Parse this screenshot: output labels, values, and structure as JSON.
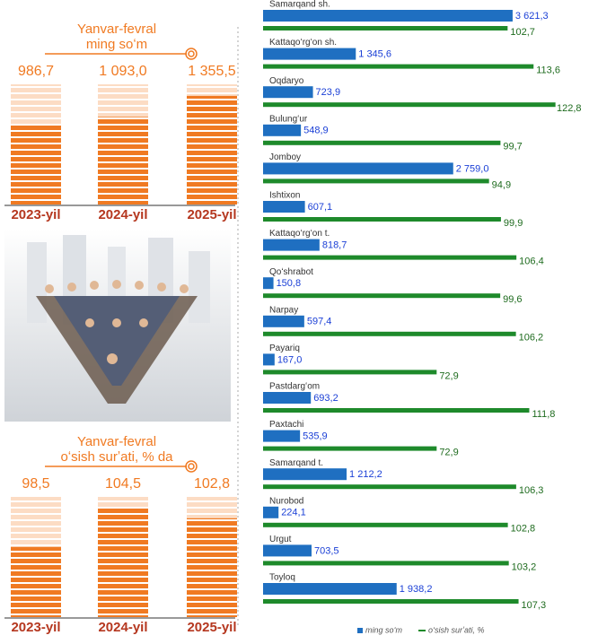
{
  "chart_data": [
    {
      "type": "bar",
      "title": "Yanvar-fevral",
      "subtitle": "ming soʻm",
      "categories": [
        "2023-yil",
        "2024-yil",
        "2025-yil"
      ],
      "values": [
        986.7,
        1093.0,
        1355.5
      ],
      "value_labels": [
        "986,7",
        "1 093,0",
        "1 355,5"
      ],
      "color": "#f07a22",
      "ylim": [
        0,
        1500
      ]
    },
    {
      "type": "bar",
      "title": "Yanvar-fevral",
      "subtitle": "oʻsish surʼati, % da",
      "categories": [
        "2023-yil",
        "2024-yil",
        "2025-yil"
      ],
      "values": [
        98.5,
        104.5,
        102.8
      ],
      "value_labels": [
        "98,5",
        "104,5",
        "102,8"
      ],
      "color": "#f07a22",
      "ylim": [
        88,
        106
      ]
    },
    {
      "type": "hbar",
      "categories": [
        "Samarqand sh.",
        "Kattaqoʻrgʻon sh.",
        "Oqdaryo",
        "Bulungʻur",
        "Jomboy",
        "Ishtixon",
        "Kattaqoʻrgʻon t.",
        "Qoʻshrabot",
        "Narpay",
        "Payariq",
        "Pastdargʻom",
        "Paxtachi",
        "Samarqand t.",
        "Nurobod",
        "Urgut",
        "Toyloq"
      ],
      "xlim": [
        0,
        4000
      ],
      "x2lim": [
        0,
        135
      ],
      "legend": "bottom",
      "series": [
        {
          "name": "ming soʻm",
          "color": "#1f6fc1",
          "values": [
            3621.3,
            1345.6,
            723.9,
            548.9,
            2759.0,
            607.1,
            818.7,
            150.8,
            597.4,
            167.0,
            693.2,
            535.9,
            1212.2,
            224.1,
            703.5,
            1938.2
          ],
          "value_labels": [
            "3 621,3",
            "1 345,6",
            "723,9",
            "548,9",
            "2 759,0",
            "607,1",
            "818,7",
            "150,8",
            "597,4",
            "167,0",
            "693,2",
            "535,9",
            "1 212,2",
            "224,1",
            "703,5",
            "1 938,2"
          ]
        },
        {
          "name": "oʻsish surʼati, %",
          "color": "#1e8a2b",
          "axis": "x2",
          "values": [
            102.7,
            113.6,
            122.8,
            99.7,
            94.9,
            99.9,
            106.4,
            99.6,
            106.2,
            72.9,
            111.8,
            72.9,
            106.3,
            102.8,
            103.2,
            107.3
          ],
          "value_labels": [
            "102,7",
            "113,6",
            "122,8",
            "99,7",
            "94,9",
            "99,9",
            "106,4",
            "99,6",
            "106,2",
            "72,9",
            "111,8",
            "72,9",
            "106,3",
            "102,8",
            "103,2",
            "107,3"
          ]
        }
      ]
    }
  ]
}
